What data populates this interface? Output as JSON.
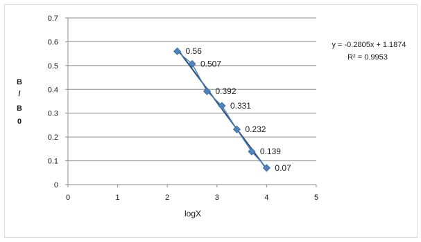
{
  "chart_data": {
    "type": "scatter",
    "title": "",
    "xlabel": "logX",
    "ylabel": [
      "B",
      "/",
      "B",
      "0"
    ],
    "xlim": [
      0,
      5
    ],
    "ylim": [
      0,
      0.7
    ],
    "xticks": [
      0,
      1,
      2,
      3,
      4,
      5
    ],
    "yticks": [
      0,
      0.1,
      0.2,
      0.3,
      0.4,
      0.5,
      0.6,
      0.7
    ],
    "ytick_labels": [
      "0",
      "0.1",
      "0.2",
      "0.3",
      "0.4",
      "0.5",
      "0.6",
      "0.7"
    ],
    "grid": "horizontal",
    "series": [
      {
        "x": [
          2.2,
          2.5,
          2.8,
          3.1,
          3.4,
          3.7,
          4.0
        ],
        "y": [
          0.56,
          0.507,
          0.392,
          0.331,
          0.232,
          0.139,
          0.07
        ],
        "labels": [
          "0.56",
          "0.507",
          "0.392",
          "0.331",
          "0.232",
          "0.139",
          "0.07"
        ],
        "color": "#4f81bd",
        "marker": "diamond"
      }
    ],
    "trendline": {
      "slope": -0.2805,
      "intercept": 1.1874,
      "color": "#2a4d74",
      "equation": "y = -0.2805x + 1.1874",
      "r_squared": "R² = 0.9953"
    }
  }
}
